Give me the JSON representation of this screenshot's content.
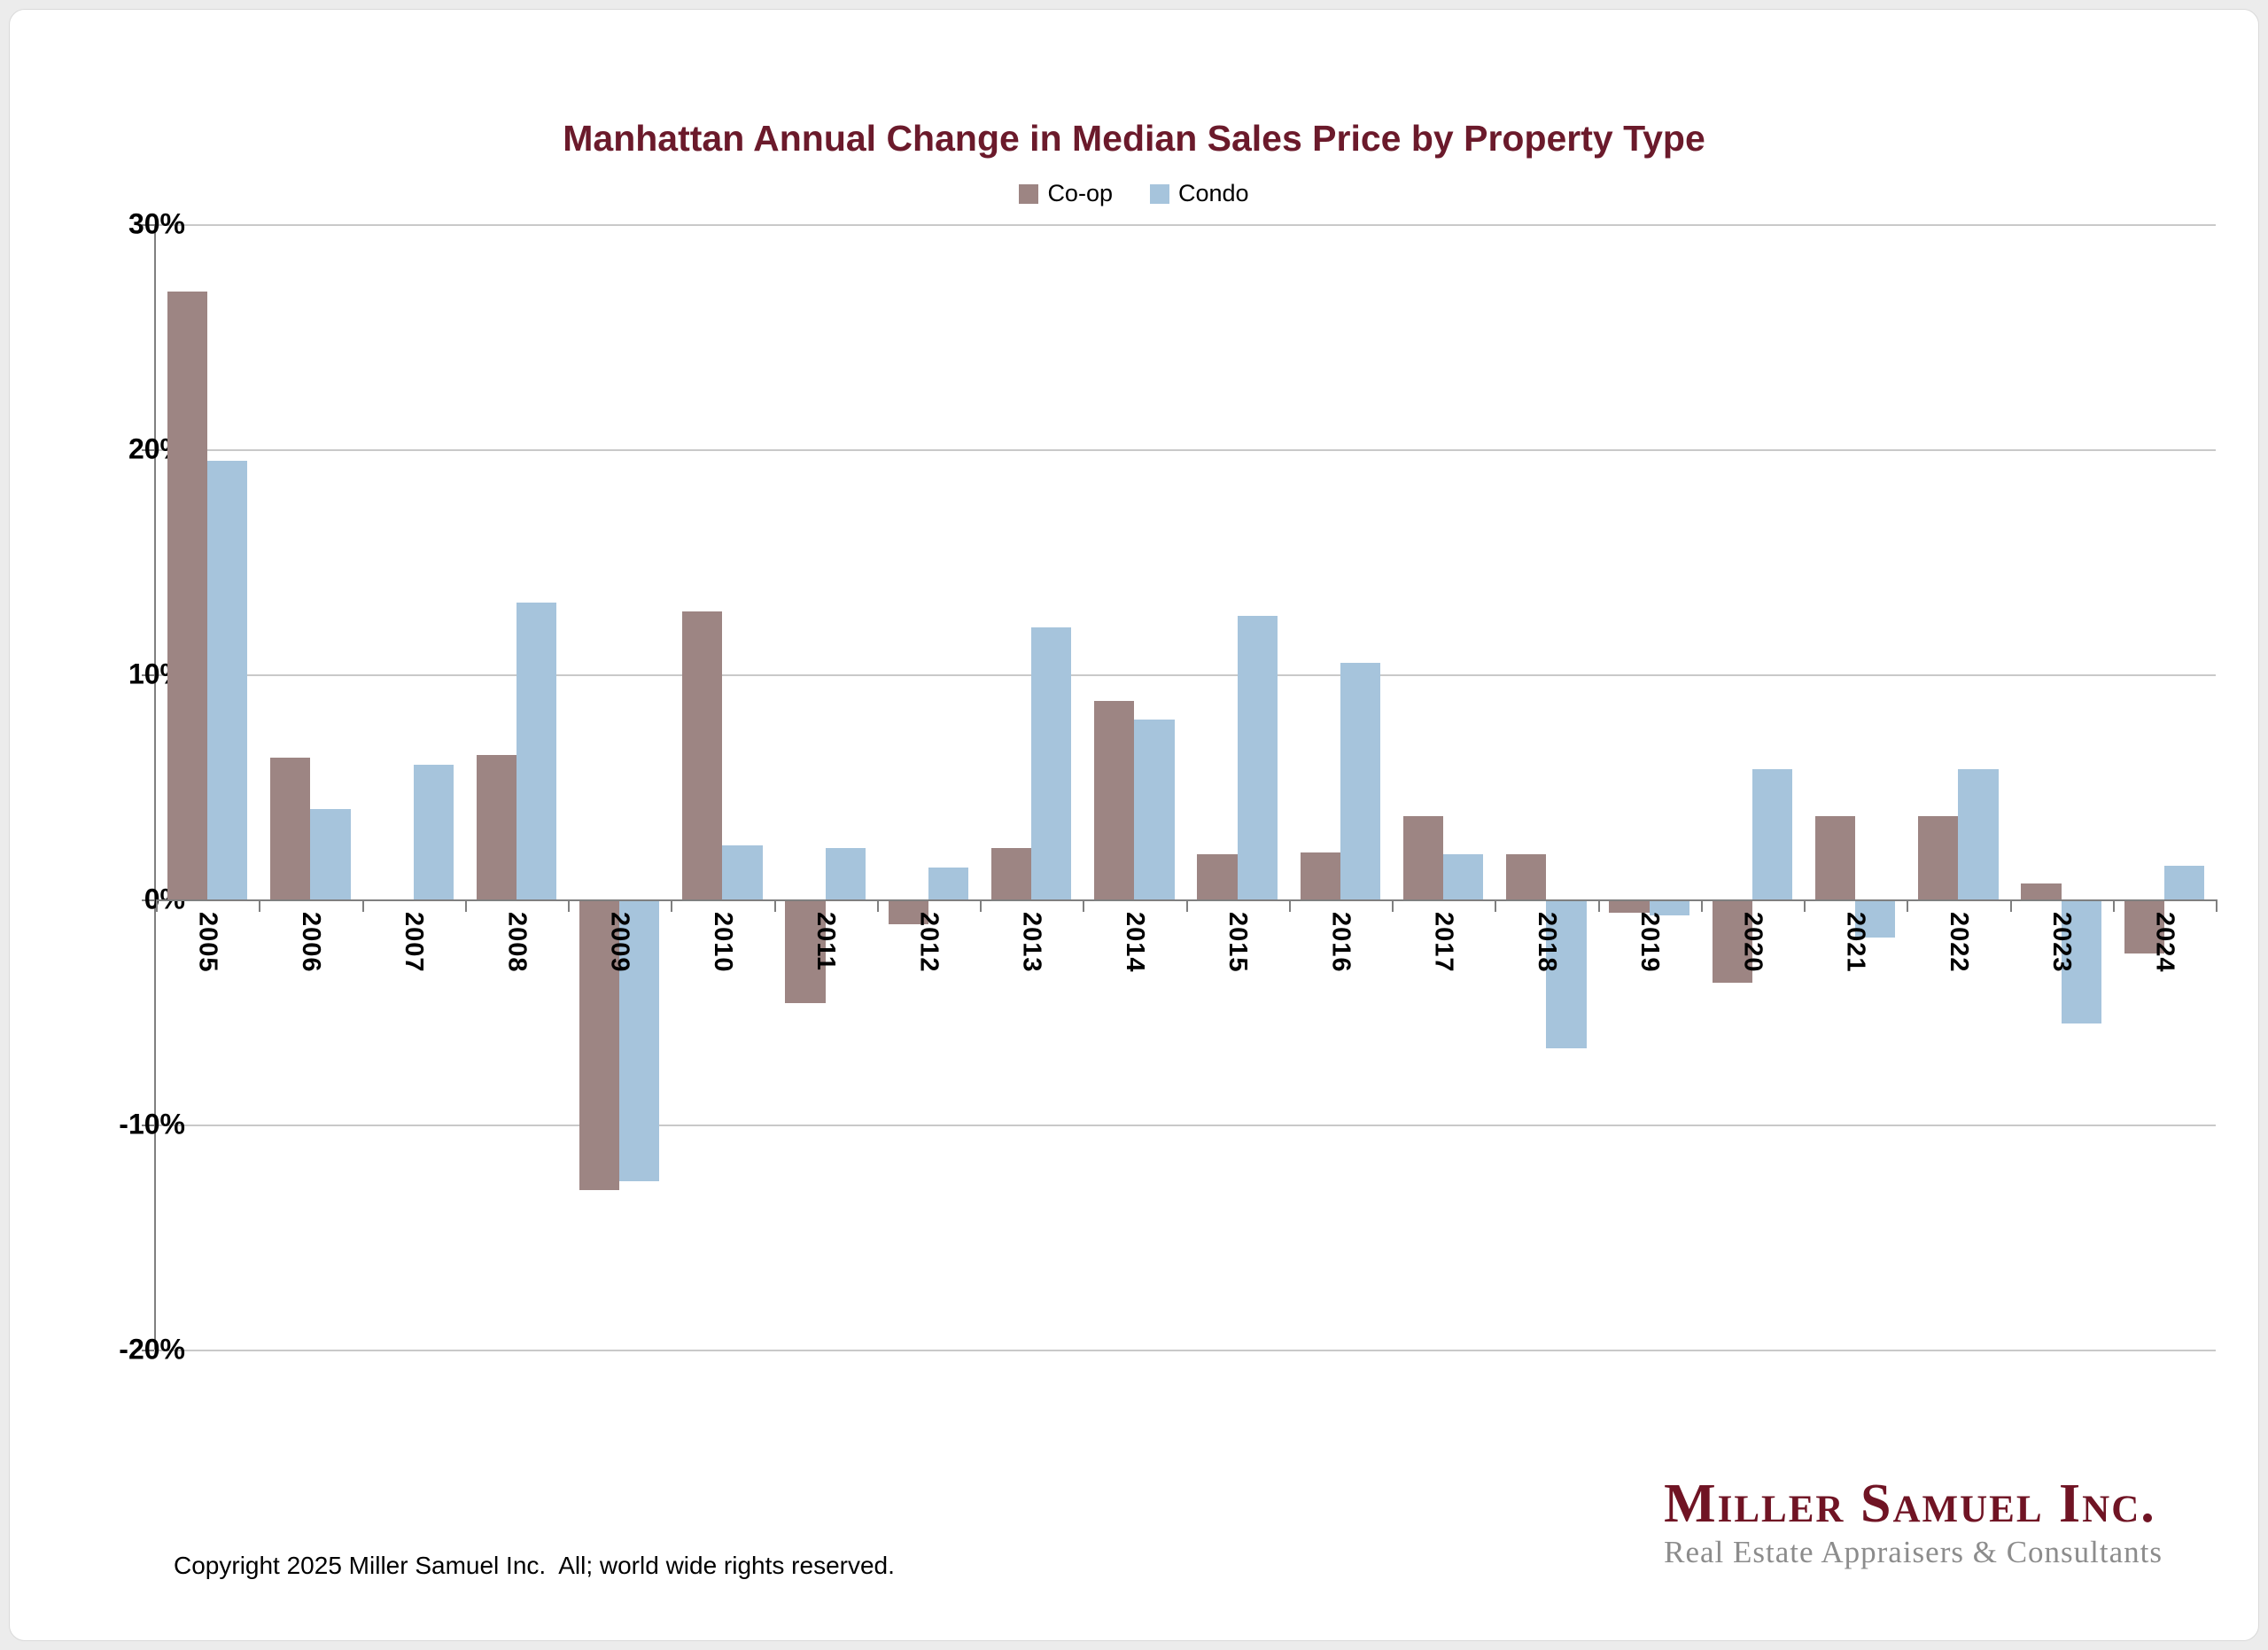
{
  "title": "Manhattan Annual Change in Median Sales Price by Property Type",
  "colors": {
    "coop": "#9d8583",
    "condo": "#a6c4dc",
    "title_maroon": "#6b1a2b",
    "logo_maroon": "#701424",
    "logo_gray": "#8c8c8c",
    "gridline": "#c9c9c9",
    "axis_line": "#7f7f7f"
  },
  "legend": {
    "items": [
      {
        "label": "Co-op",
        "color": "#9d8583"
      },
      {
        "label": "Condo",
        "color": "#a6c4dc"
      }
    ]
  },
  "y_axis": {
    "tick_labels": [
      "30%",
      "20%",
      "10%",
      "0%",
      "-10%",
      "-20%"
    ],
    "tick_values": [
      30,
      20,
      10,
      0,
      -10,
      -20
    ]
  },
  "chart_data": {
    "type": "bar",
    "title": "Manhattan Annual Change in Median Sales Price by Property Type",
    "xlabel": "",
    "ylabel": "",
    "ylim": [
      -20,
      30
    ],
    "grid": true,
    "legend_position": "top",
    "categories": [
      "2005",
      "2006",
      "2007",
      "2008",
      "2009",
      "2010",
      "2011",
      "2012",
      "2013",
      "2014",
      "2015",
      "2016",
      "2017",
      "2018",
      "2019",
      "2020",
      "2021",
      "2022",
      "2023",
      "2024"
    ],
    "series": [
      {
        "name": "Co-op",
        "color": "#9d8583",
        "values": [
          27.0,
          6.3,
          0.0,
          6.4,
          -12.9,
          12.8,
          -4.6,
          -1.1,
          2.3,
          8.8,
          2.0,
          2.1,
          3.7,
          2.0,
          -0.6,
          -3.7,
          3.7,
          3.7,
          0.7,
          -2.4
        ]
      },
      {
        "name": "Condo",
        "color": "#a6c4dc",
        "values": [
          19.5,
          4.0,
          6.0,
          13.2,
          -12.5,
          2.4,
          2.3,
          1.4,
          12.1,
          8.0,
          12.6,
          10.5,
          2.0,
          -6.6,
          -0.7,
          5.8,
          -1.7,
          5.8,
          -5.5,
          1.5
        ]
      }
    ]
  },
  "footer": {
    "copyright": "Copyright 2025 Miller Samuel Inc.  All; world wide rights reserved.",
    "logo_title": "Miller Samuel Inc.",
    "logo_subtitle": "Real Estate Appraisers & Consultants"
  }
}
